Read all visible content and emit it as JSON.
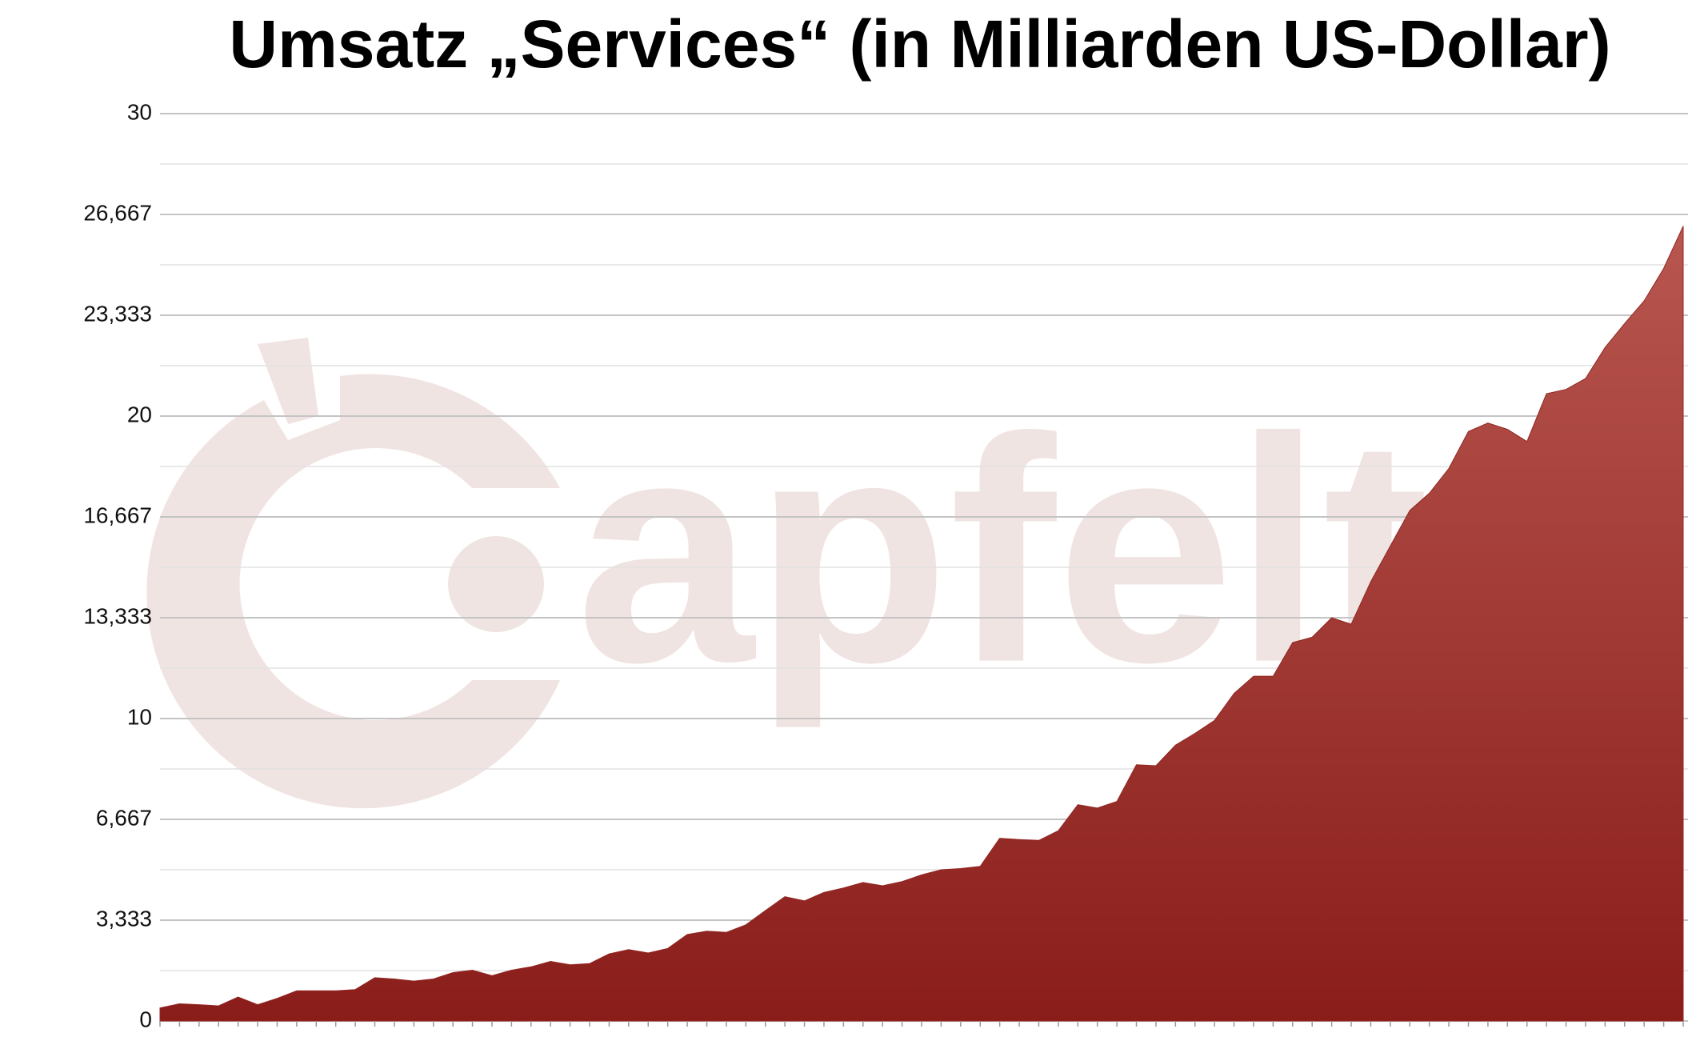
{
  "chart_data": {
    "type": "area",
    "title": "Umsatz „Services“ (in Milliarden US-Dollar)",
    "watermark": "apfelta",
    "color": "#922622",
    "values": [
      0.43,
      0.57,
      0.54,
      0.5,
      0.79,
      0.54,
      0.75,
      1.0,
      1.0,
      1.0,
      1.04,
      1.43,
      1.39,
      1.32,
      1.39,
      1.6,
      1.68,
      1.5,
      1.68,
      1.79,
      1.97,
      1.86,
      1.9,
      2.22,
      2.36,
      2.25,
      2.4,
      2.86,
      2.97,
      2.93,
      3.18,
      3.65,
      4.11,
      3.97,
      4.25,
      4.4,
      4.58,
      4.47,
      4.61,
      4.83,
      5.0,
      5.04,
      5.11,
      6.04,
      6.0,
      5.97,
      6.29,
      7.15,
      7.04,
      7.26,
      8.47,
      8.44,
      9.12,
      9.51,
      9.94,
      10.83,
      11.4,
      11.4,
      12.51,
      12.69,
      13.33,
      13.12,
      14.52,
      15.7,
      16.88,
      17.45,
      18.27,
      19.49,
      19.77,
      19.56,
      19.16,
      20.74,
      20.88,
      21.24,
      22.27,
      23.06,
      23.81,
      24.88,
      26.28
    ],
    "ylim": [
      0,
      30
    ],
    "yticks": [
      0,
      {
        "value": 3.333,
        "label": "3,333"
      },
      {
        "value": 6.667,
        "label": "6,667"
      },
      10,
      {
        "value": 13.333,
        "label": "13,333"
      },
      {
        "value": 16.667,
        "label": "16,667"
      },
      20,
      {
        "value": 23.333,
        "label": "23,333"
      },
      {
        "value": 26.667,
        "label": "26,667"
      },
      30
    ],
    "grid": true
  }
}
